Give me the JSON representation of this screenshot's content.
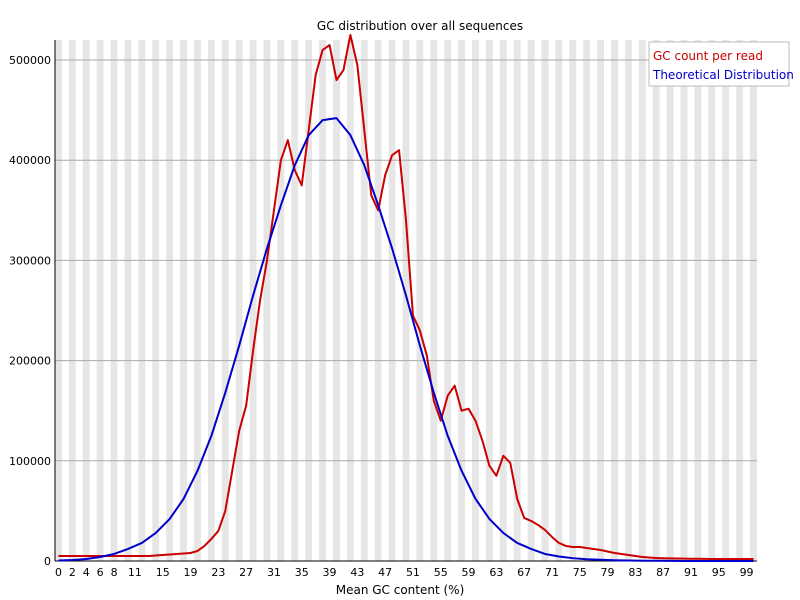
{
  "chart_data": {
    "type": "line",
    "title": "GC distribution over all sequences",
    "xlabel": "Mean GC content (%)",
    "ylabel": "",
    "xlim": [
      0,
      101
    ],
    "ylim": [
      0,
      520000
    ],
    "grid": true,
    "legend_position": "top-right",
    "xtick_labels": [
      "0",
      "2",
      "4",
      "6",
      "8",
      "11",
      "15",
      "19",
      "23",
      "27",
      "31",
      "35",
      "39",
      "43",
      "47",
      "51",
      "55",
      "59",
      "63",
      "67",
      "71",
      "75",
      "79",
      "83",
      "87",
      "91",
      "95",
      "99"
    ],
    "xtick_positions": [
      0,
      2,
      4,
      6,
      8,
      11,
      15,
      19,
      23,
      27,
      31,
      35,
      39,
      43,
      47,
      51,
      55,
      59,
      63,
      67,
      71,
      75,
      79,
      83,
      87,
      91,
      95,
      99
    ],
    "yticks": [
      0,
      100000,
      200000,
      300000,
      400000,
      500000
    ],
    "series": [
      {
        "name": "GC count per read",
        "color": "#cc0000",
        "x": [
          0,
          2,
          4,
          6,
          8,
          10,
          11,
          13,
          15,
          17,
          19,
          20,
          21,
          22,
          23,
          24,
          25,
          26,
          27,
          28,
          29,
          30,
          31,
          32,
          33,
          34,
          35,
          36,
          37,
          38,
          39,
          40,
          41,
          42,
          43,
          44,
          45,
          46,
          47,
          48,
          49,
          50,
          51,
          52,
          53,
          54,
          55,
          56,
          57,
          58,
          59,
          60,
          61,
          62,
          63,
          64,
          65,
          66,
          67,
          68,
          69,
          70,
          71,
          72,
          73,
          74,
          75,
          76,
          77,
          78,
          79,
          80,
          81,
          82,
          83,
          84,
          85,
          86,
          87,
          88,
          89,
          90,
          91,
          92,
          93,
          94,
          95,
          96,
          97,
          98,
          99,
          100
        ],
        "values": [
          5000,
          5000,
          5000,
          5000,
          5000,
          5000,
          5000,
          5000,
          6000,
          7000,
          8000,
          10000,
          15000,
          22000,
          30000,
          50000,
          90000,
          130000,
          155000,
          210000,
          260000,
          300000,
          350000,
          400000,
          420000,
          390000,
          375000,
          430000,
          485000,
          510000,
          515000,
          480000,
          490000,
          525000,
          495000,
          430000,
          365000,
          350000,
          385000,
          405000,
          410000,
          340000,
          245000,
          230000,
          205000,
          160000,
          140000,
          165000,
          175000,
          150000,
          152000,
          140000,
          120000,
          95000,
          85000,
          105000,
          98000,
          62000,
          43000,
          40000,
          36000,
          31000,
          24000,
          18000,
          15000,
          14000,
          14000,
          13000,
          12000,
          11000,
          9500,
          8000,
          7000,
          6000,
          5000,
          4000,
          3500,
          3000,
          2800,
          2600,
          2500,
          2400,
          2300,
          2200,
          2100,
          2000,
          2000,
          2000,
          2000,
          2000,
          2000,
          2000
        ]
      },
      {
        "name": "Theoretical Distribution",
        "color": "#0000cc",
        "x": [
          0,
          2,
          4,
          6,
          8,
          10,
          12,
          14,
          16,
          18,
          20,
          22,
          24,
          26,
          28,
          30,
          32,
          34,
          36,
          38,
          40,
          42,
          44,
          46,
          48,
          50,
          52,
          54,
          56,
          58,
          60,
          62,
          64,
          66,
          68,
          70,
          72,
          74,
          76,
          78,
          80,
          82,
          84,
          86,
          88,
          90,
          92,
          94,
          96,
          98,
          100
        ],
        "values": [
          500,
          1000,
          2000,
          4000,
          7000,
          12000,
          18000,
          28000,
          42000,
          62000,
          90000,
          125000,
          168000,
          215000,
          265000,
          312000,
          355000,
          395000,
          425000,
          440000,
          442000,
          425000,
          395000,
          355000,
          312000,
          265000,
          215000,
          168000,
          125000,
          90000,
          62000,
          42000,
          28000,
          18000,
          12000,
          7000,
          4500,
          2800,
          1800,
          1200,
          800,
          500,
          300,
          200,
          100,
          50,
          20,
          10,
          0,
          0,
          0
        ]
      }
    ]
  }
}
